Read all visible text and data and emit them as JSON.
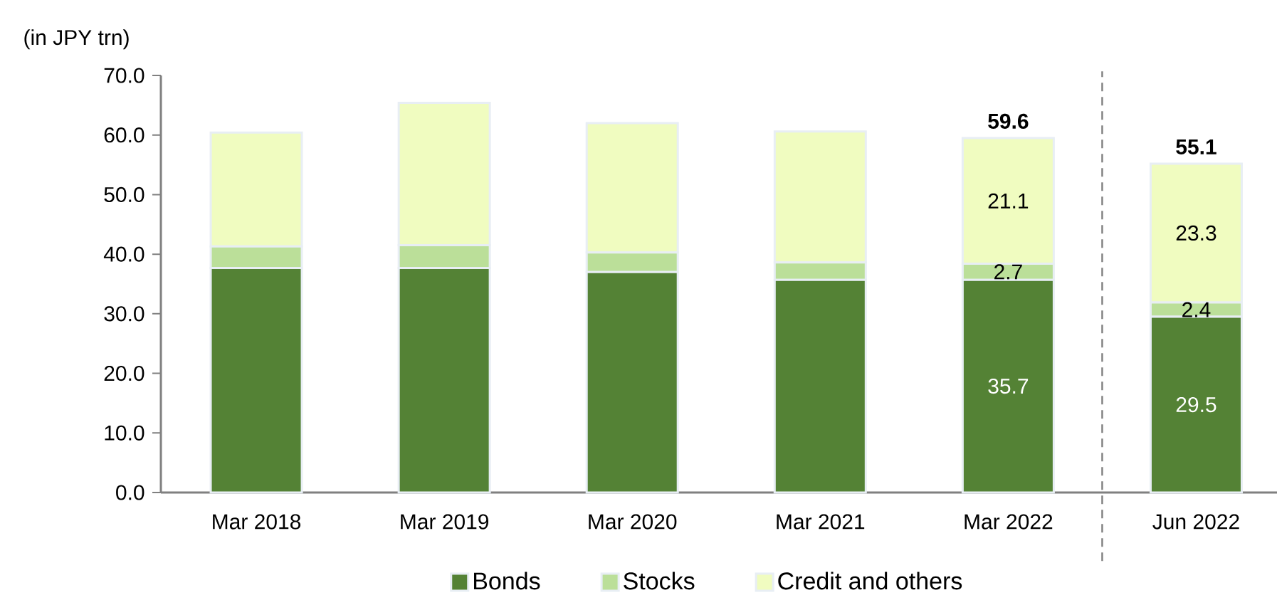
{
  "chart_data": {
    "type": "bar",
    "stacked": true,
    "ylabel": "(in JPY trn)",
    "categories": [
      "Mar 2018",
      "Mar 2019",
      "Mar 2020",
      "Mar 2021",
      "Mar 2022",
      "Jun 2022"
    ],
    "series": [
      {
        "name": "Bonds",
        "color": "#548235",
        "values": [
          37.7,
          37.7,
          37.0,
          35.7,
          35.7,
          29.5
        ],
        "value_labels": [
          null,
          null,
          null,
          null,
          "35.7",
          "29.5"
        ]
      },
      {
        "name": "Stocks",
        "color": "#bbdf99",
        "values": [
          3.6,
          3.8,
          3.3,
          2.9,
          2.7,
          2.4
        ],
        "value_labels": [
          null,
          null,
          null,
          null,
          "2.7",
          "2.4"
        ]
      },
      {
        "name": "Credit and others",
        "color": "#f0fcc0",
        "values": [
          19.1,
          23.9,
          21.7,
          22.0,
          21.1,
          23.3
        ],
        "value_labels": [
          null,
          null,
          null,
          null,
          "21.1",
          "23.3"
        ]
      }
    ],
    "totals": [
      null,
      null,
      null,
      null,
      "59.6",
      "55.1"
    ],
    "ylim": [
      0,
      70
    ],
    "yticks": [
      {
        "value": 0,
        "label": "0.0"
      },
      {
        "value": 10,
        "label": "10.0"
      },
      {
        "value": 20,
        "label": "20.0"
      },
      {
        "value": 30,
        "label": "30.0"
      },
      {
        "value": 40,
        "label": "40.0"
      },
      {
        "value": 50,
        "label": "50.0"
      },
      {
        "value": 60,
        "label": "60.0"
      },
      {
        "value": 70,
        "label": "70.0"
      }
    ],
    "legend": "bottom"
  }
}
